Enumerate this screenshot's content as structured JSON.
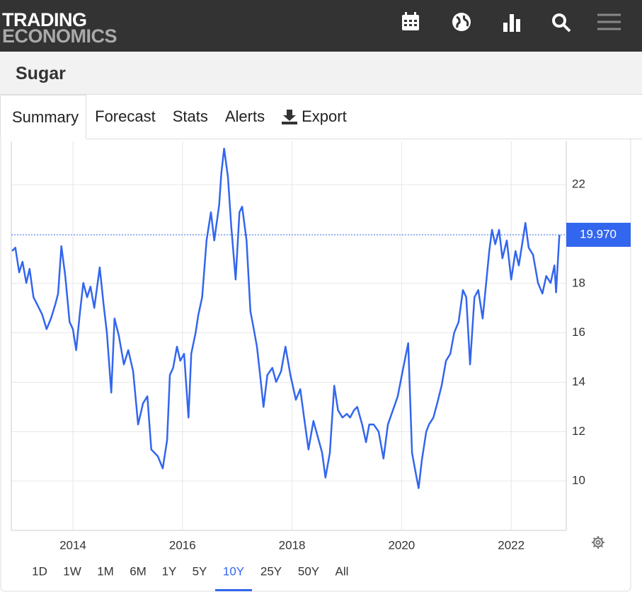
{
  "header": {
    "logo_top": "TRADING",
    "logo_bottom": "ECONOMICS"
  },
  "page_title": "Sugar",
  "tabs": [
    "Summary",
    "Forecast",
    "Stats",
    "Alerts",
    "Export"
  ],
  "active_tab": 0,
  "ranges": [
    "1D",
    "1W",
    "1M",
    "6M",
    "1Y",
    "5Y",
    "10Y",
    "25Y",
    "50Y",
    "All"
  ],
  "active_range": 6,
  "chart_data": {
    "type": "line",
    "x": [
      2012.89,
      2012.95,
      2013.02,
      2013.08,
      2013.15,
      2013.21,
      2013.28,
      2013.38,
      2013.44,
      2013.52,
      2013.6,
      2013.68,
      2013.73,
      2013.79,
      2013.86,
      2013.94,
      2014.0,
      2014.06,
      2014.13,
      2014.19,
      2014.26,
      2014.32,
      2014.39,
      2014.49,
      2014.56,
      2014.62,
      2014.7,
      2014.76,
      2014.84,
      2014.93,
      2015.01,
      2015.1,
      2015.19,
      2015.28,
      2015.36,
      2015.43,
      2015.55,
      2015.64,
      2015.72,
      2015.77,
      2015.83,
      2015.9,
      2015.96,
      2016.03,
      2016.11,
      2016.16,
      2016.24,
      2016.29,
      2016.36,
      2016.44,
      2016.52,
      2016.58,
      2016.67,
      2016.71,
      2016.76,
      2016.83,
      2016.89,
      2016.97,
      2017.04,
      2017.09,
      2017.17,
      2017.24,
      2017.29,
      2017.36,
      2017.41,
      2017.48,
      2017.55,
      2017.64,
      2017.71,
      2017.8,
      2017.88,
      2017.97,
      2018.07,
      2018.15,
      2018.22,
      2018.3,
      2018.39,
      2018.48,
      2018.55,
      2018.61,
      2018.69,
      2018.77,
      2018.84,
      2018.92,
      2019.0,
      2019.06,
      2019.13,
      2019.19,
      2019.28,
      2019.35,
      2019.41,
      2019.49,
      2019.58,
      2019.67,
      2019.75,
      2019.84,
      2019.93,
      2020.03,
      2020.12,
      2020.19,
      2020.25,
      2020.31,
      2020.37,
      2020.45,
      2020.5,
      2020.58,
      2020.65,
      2020.73,
      2020.81,
      2020.89,
      2020.96,
      2021.04,
      2021.12,
      2021.18,
      2021.25,
      2021.33,
      2021.4,
      2021.48,
      2021.55,
      2021.6,
      2021.65,
      2021.71,
      2021.78,
      2021.84,
      2021.92,
      2022.0,
      2022.08,
      2022.14,
      2022.19,
      2022.26,
      2022.32,
      2022.4,
      2022.49,
      2022.57,
      2022.64,
      2022.72,
      2022.79,
      2022.82,
      2022.88
    ],
    "series": [
      {
        "name": "Sugar",
        "color": "#3366ee",
        "values": [
          19.31,
          19.45,
          18.45,
          18.88,
          18.02,
          18.59,
          17.44,
          17.01,
          16.73,
          16.15,
          16.58,
          17.16,
          17.59,
          19.51,
          18.3,
          16.44,
          16.15,
          15.3,
          16.87,
          18.02,
          17.44,
          17.87,
          17.01,
          18.65,
          17.16,
          16.01,
          13.58,
          16.58,
          15.87,
          14.72,
          15.3,
          14.44,
          12.29,
          13.15,
          13.43,
          11.28,
          11.0,
          10.51,
          11.66,
          14.29,
          14.58,
          15.44,
          14.87,
          15.15,
          12.57,
          15.15,
          16.01,
          16.73,
          17.44,
          19.74,
          20.88,
          19.74,
          21.17,
          22.46,
          23.46,
          22.32,
          20.31,
          18.16,
          20.88,
          21.11,
          19.74,
          16.87,
          16.3,
          15.44,
          14.44,
          13.0,
          14.29,
          14.58,
          14.01,
          14.44,
          15.44,
          14.29,
          13.29,
          13.72,
          12.57,
          11.28,
          12.43,
          11.71,
          11.14,
          10.14,
          11.14,
          13.86,
          12.86,
          12.57,
          12.72,
          12.57,
          12.86,
          13.0,
          12.29,
          11.57,
          12.29,
          12.29,
          12.0,
          10.91,
          12.29,
          12.86,
          13.43,
          14.58,
          15.58,
          11.14,
          10.42,
          9.71,
          10.85,
          12.0,
          12.29,
          12.57,
          13.15,
          13.86,
          14.87,
          15.15,
          16.01,
          16.44,
          17.73,
          17.44,
          14.72,
          17.44,
          17.73,
          16.58,
          18.16,
          19.31,
          20.17,
          19.59,
          20.17,
          19.02,
          19.74,
          18.16,
          19.31,
          18.73,
          19.45,
          20.45,
          19.45,
          19.16,
          18.02,
          17.59,
          18.3,
          18.02,
          18.73,
          17.64,
          19.97
        ]
      }
    ],
    "current": {
      "value": 19.97,
      "label": "19.970"
    },
    "xlim": [
      2012.876,
      2022.98
    ],
    "ylim": [
      8,
      23.75
    ],
    "xticks": [
      2014,
      2016,
      2018,
      2020,
      2022
    ],
    "yticks": [
      10,
      12,
      14,
      16,
      18,
      22
    ],
    "grid": true
  }
}
